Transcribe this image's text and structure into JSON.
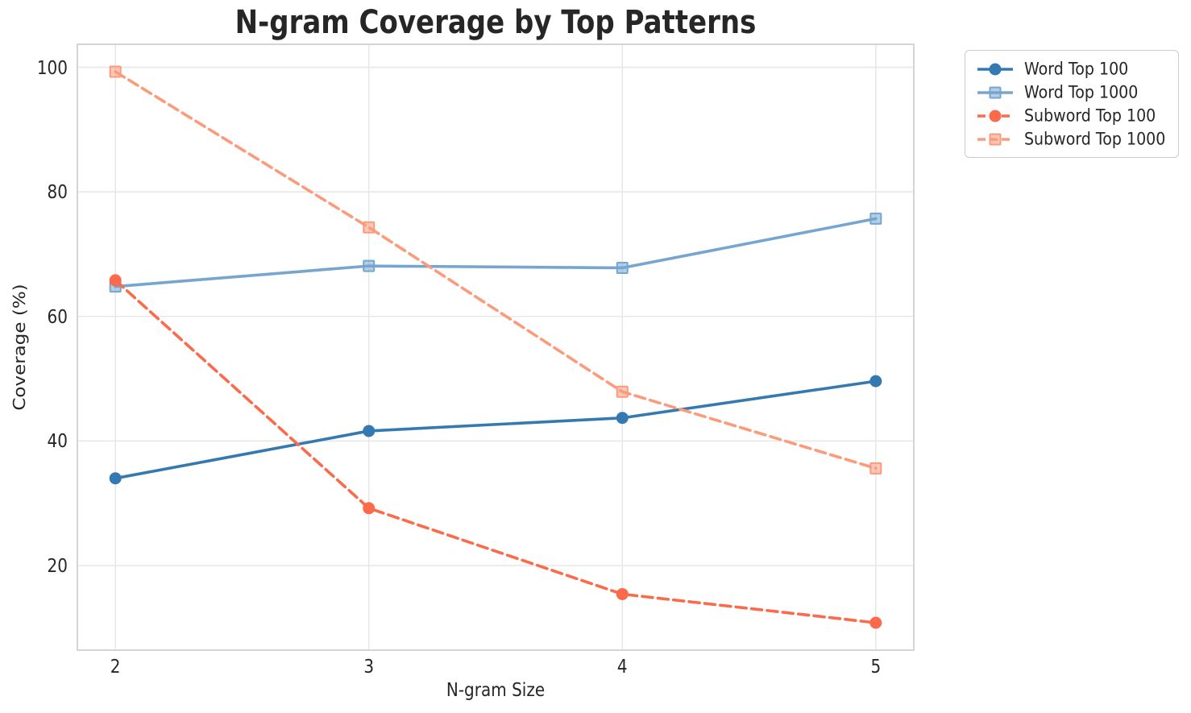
{
  "chart_data": {
    "type": "line",
    "title": "N-gram Coverage by Top Patterns",
    "xlabel": "N-gram Size",
    "ylabel": "Coverage (%)",
    "x": [
      2,
      3,
      4,
      5
    ],
    "xticks": [
      "2",
      "3",
      "4",
      "5"
    ],
    "yticks": [
      "20",
      "40",
      "60",
      "80",
      "100"
    ],
    "ytick_values": [
      20,
      40,
      60,
      80,
      100
    ],
    "xlim": [
      1.85,
      5.15
    ],
    "ylim": [
      6.4,
      103.7
    ],
    "grid": true,
    "legend_position": "outside-upper-right",
    "series": [
      {
        "name": "Word Top 100",
        "values": [
          34.0,
          41.6,
          43.7,
          49.6
        ],
        "color": "#3579b1",
        "linestyle": "solid",
        "marker": "circle"
      },
      {
        "name": "Word Top 1000",
        "values": [
          64.8,
          68.1,
          67.8,
          75.7
        ],
        "color": "#76a5d0",
        "linestyle": "solid",
        "marker": "square"
      },
      {
        "name": "Subword Top 100",
        "values": [
          65.8,
          29.2,
          15.4,
          10.8
        ],
        "color": "#fb6a4a",
        "linestyle": "dashed",
        "marker": "circle"
      },
      {
        "name": "Subword Top 1000",
        "values": [
          99.3,
          74.3,
          47.9,
          35.6
        ],
        "color": "#fc9b7c",
        "linestyle": "dashed",
        "marker": "square"
      }
    ],
    "style": {
      "grid_color": "#e8e8e8",
      "spine_color": "#d5d5d5",
      "text_color": "#262626",
      "background": "#ffffff"
    }
  }
}
